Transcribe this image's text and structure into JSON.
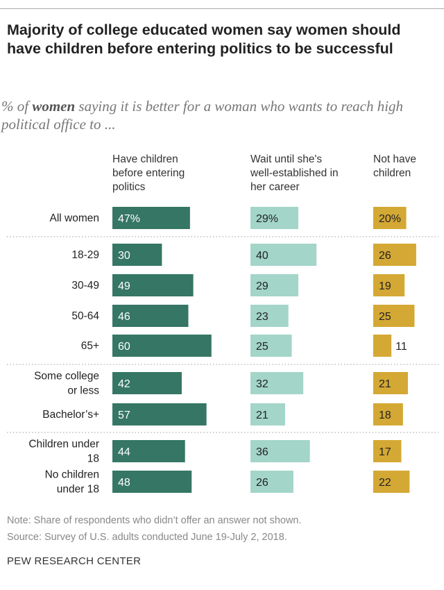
{
  "title": "Majority of college educated women say women should have children before entering politics to be successful",
  "subtitle_pre": "% of ",
  "subtitle_bold": "women",
  "subtitle_post": " saying it is better for a woman who wants to reach high political office to ...",
  "note": "Note: Share of respondents who didn’t offer an answer not shown.",
  "source": "Source: Survey of U.S. adults conducted June 19-July 2, 2018.",
  "footer": "PEW RESEARCH CENTER",
  "chart_data": {
    "type": "bar",
    "orientation": "horizontal",
    "categories": [
      "All women",
      "18-29",
      "30-49",
      "50-64",
      "65+",
      "Some college or less",
      "Bachelor’s+",
      "Children under 18",
      "No children under 18"
    ],
    "series": [
      {
        "name": "Have children before entering politics",
        "color": "#357664",
        "values": [
          47,
          30,
          49,
          46,
          60,
          42,
          57,
          44,
          48
        ]
      },
      {
        "name": "Wait until she's well-established in her career",
        "color": "#a3d5c9",
        "values": [
          29,
          40,
          29,
          23,
          25,
          32,
          21,
          36,
          26
        ]
      },
      {
        "name": "Not have children",
        "color": "#d4a834",
        "values": [
          20,
          26,
          19,
          25,
          11,
          21,
          18,
          17,
          22
        ]
      }
    ],
    "first_row_suffix": "%",
    "group_separators_after": [
      "All women",
      "65+",
      "Bachelor’s+"
    ]
  }
}
